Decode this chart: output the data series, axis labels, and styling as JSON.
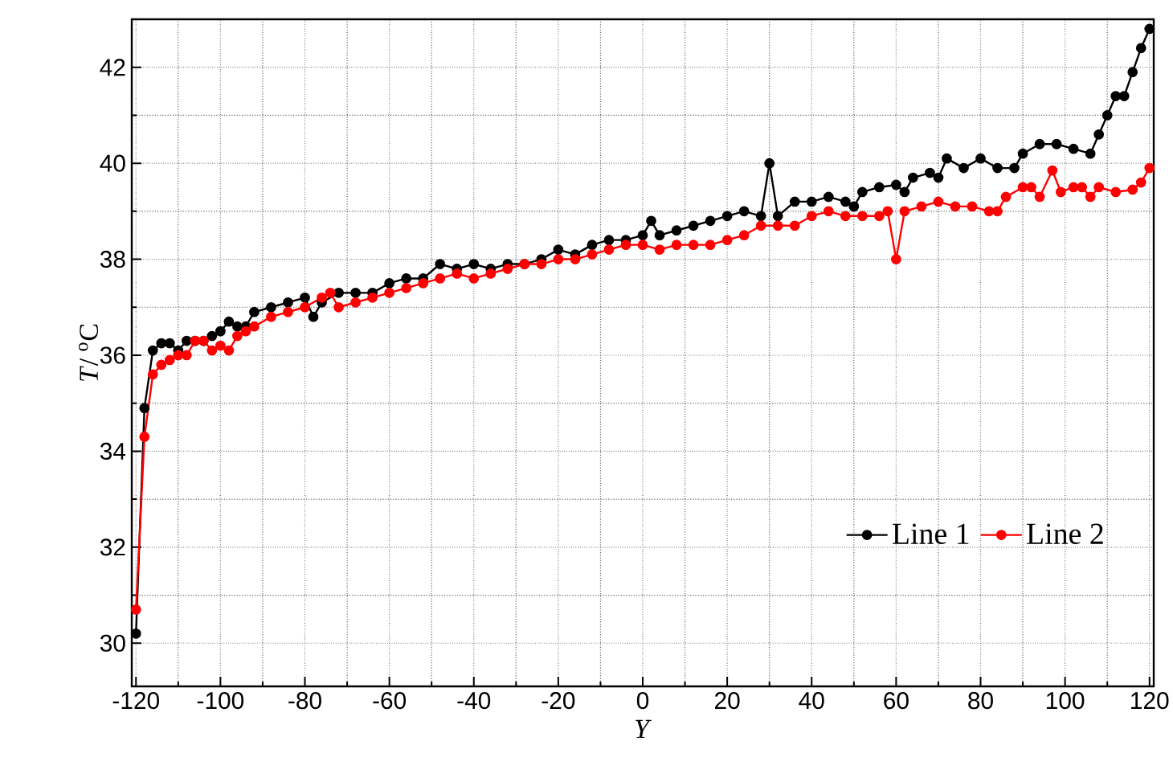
{
  "chart_data": {
    "type": "line",
    "xlabel": "*Y*",
    "ylabel": "*T*/ $^{o}$C",
    "xlim": [
      -121,
      121
    ],
    "ylim": [
      29.1,
      43
    ],
    "xticks": [
      -120,
      -100,
      -80,
      -60,
      -40,
      -20,
      0,
      20,
      40,
      60,
      80,
      100,
      120
    ],
    "yticks": [
      30,
      32,
      34,
      36,
      38,
      40,
      42
    ],
    "grid": true,
    "legend": "bottom right",
    "marker": "circle",
    "line_style": "solid",
    "series": [
      {
        "name": "Line 1",
        "color": "#000000",
        "x": [
          -120,
          -118,
          -116,
          -114,
          -112,
          -110,
          -108,
          -106,
          -104,
          -102,
          -100,
          -98,
          -96,
          -94,
          -92,
          -88,
          -84,
          -80,
          -78,
          -76,
          -72,
          -68,
          -64,
          -60,
          -56,
          -52,
          -48,
          -44,
          -40,
          -36,
          -32,
          -28,
          -24,
          -20,
          -16,
          -12,
          -8,
          -4,
          0,
          2,
          4,
          8,
          12,
          16,
          20,
          24,
          28,
          30,
          32,
          36,
          40,
          44,
          48,
          50,
          52,
          56,
          60,
          62,
          64,
          68,
          70,
          72,
          76,
          80,
          84,
          88,
          90,
          94,
          98,
          102,
          106,
          108,
          110,
          112,
          114,
          116,
          118,
          120
        ],
        "values": [
          30.2,
          34.9,
          36.1,
          36.25,
          36.25,
          36.1,
          36.3,
          36.3,
          36.3,
          36.4,
          36.5,
          36.7,
          36.6,
          36.6,
          36.9,
          37.0,
          37.1,
          37.2,
          36.8,
          37.1,
          37.3,
          37.3,
          37.3,
          37.5,
          37.6,
          37.6,
          37.9,
          37.8,
          37.9,
          37.8,
          37.9,
          37.9,
          38.0,
          38.2,
          38.1,
          38.3,
          38.4,
          38.4,
          38.5,
          38.8,
          38.5,
          38.6,
          38.7,
          38.8,
          38.9,
          39.0,
          38.9,
          40.0,
          38.9,
          39.2,
          39.2,
          39.3,
          39.2,
          39.1,
          39.4,
          39.5,
          39.55,
          39.4,
          39.7,
          39.8,
          39.7,
          40.1,
          39.9,
          40.1,
          39.9,
          39.9,
          40.2,
          40.4,
          40.4,
          40.3,
          40.2,
          40.6,
          41.0,
          41.4,
          41.4,
          41.9,
          42.4,
          42.8
        ]
      },
      {
        "name": "Line 2",
        "color": "#ff0000",
        "x": [
          -120,
          -118,
          -116,
          -114,
          -112,
          -110,
          -108,
          -106,
          -104,
          -102,
          -100,
          -98,
          -96,
          -94,
          -92,
          -88,
          -84,
          -80,
          -76,
          -74,
          -72,
          -68,
          -64,
          -60,
          -56,
          -52,
          -48,
          -44,
          -40,
          -36,
          -32,
          -28,
          -24,
          -20,
          -16,
          -12,
          -8,
          -4,
          0,
          4,
          8,
          12,
          16,
          20,
          24,
          28,
          32,
          36,
          40,
          44,
          48,
          52,
          56,
          58,
          60,
          62,
          66,
          70,
          74,
          78,
          82,
          84,
          86,
          90,
          92,
          94,
          97,
          99,
          102,
          104,
          106,
          108,
          112,
          116,
          118,
          120
        ],
        "values": [
          30.7,
          34.3,
          35.6,
          35.8,
          35.9,
          36.0,
          36.0,
          36.3,
          36.3,
          36.1,
          36.2,
          36.1,
          36.4,
          36.5,
          36.6,
          36.8,
          36.9,
          37.0,
          37.2,
          37.3,
          37.0,
          37.1,
          37.2,
          37.3,
          37.4,
          37.5,
          37.6,
          37.7,
          37.6,
          37.7,
          37.8,
          37.9,
          37.9,
          38.0,
          38.0,
          38.1,
          38.2,
          38.3,
          38.3,
          38.2,
          38.3,
          38.3,
          38.3,
          38.4,
          38.5,
          38.7,
          38.7,
          38.7,
          38.9,
          39.0,
          38.9,
          38.9,
          38.9,
          39.0,
          38.0,
          39.0,
          39.1,
          39.2,
          39.1,
          39.1,
          39.0,
          39.0,
          39.3,
          39.5,
          39.5,
          39.3,
          39.85,
          39.4,
          39.5,
          39.5,
          39.3,
          39.5,
          39.4,
          39.45,
          39.6,
          39.9
        ]
      }
    ]
  }
}
